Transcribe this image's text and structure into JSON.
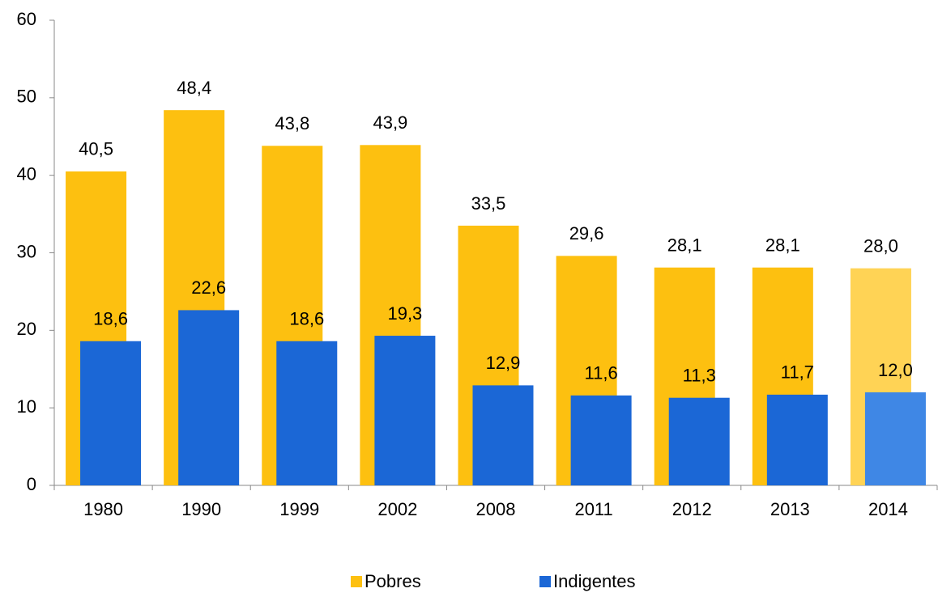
{
  "chart_data": {
    "type": "bar",
    "categories": [
      "1980",
      "1990",
      "1999",
      "2002",
      "2008",
      "2011",
      "2012",
      "2013",
      "2014"
    ],
    "series": [
      {
        "name": "Pobres",
        "color": "#FDC010",
        "colors": [
          "#FDC010",
          "#FDC010",
          "#FDC010",
          "#FDC010",
          "#FDC010",
          "#FDC010",
          "#FDC010",
          "#FDC010",
          "#FFD355"
        ],
        "values": [
          40.5,
          48.4,
          43.8,
          43.9,
          33.5,
          29.6,
          28.1,
          28.1,
          28.0
        ],
        "value_labels": [
          "40,5",
          "48,4",
          "43,8",
          "43,9",
          "33,5",
          "29,6",
          "28,1",
          "28,1",
          "28,0"
        ]
      },
      {
        "name": "Indigentes",
        "color": "#1B67D6",
        "colors": [
          "#1B67D6",
          "#1B67D6",
          "#1B67D6",
          "#1B67D6",
          "#1B67D6",
          "#1B67D6",
          "#1B67D6",
          "#1B67D6",
          "#3F87E5"
        ],
        "values": [
          18.6,
          22.6,
          18.6,
          19.3,
          12.9,
          11.6,
          11.3,
          11.7,
          12.0
        ],
        "value_labels": [
          "18,6",
          "22,6",
          "18,6",
          "19,3",
          "12,9",
          "11,6",
          "11,3",
          "11,7",
          "12,0"
        ]
      }
    ],
    "ylim": [
      0,
      60
    ],
    "yticks": [
      0,
      10,
      20,
      30,
      40,
      50,
      60
    ],
    "grid": false,
    "legend": "bottom"
  }
}
